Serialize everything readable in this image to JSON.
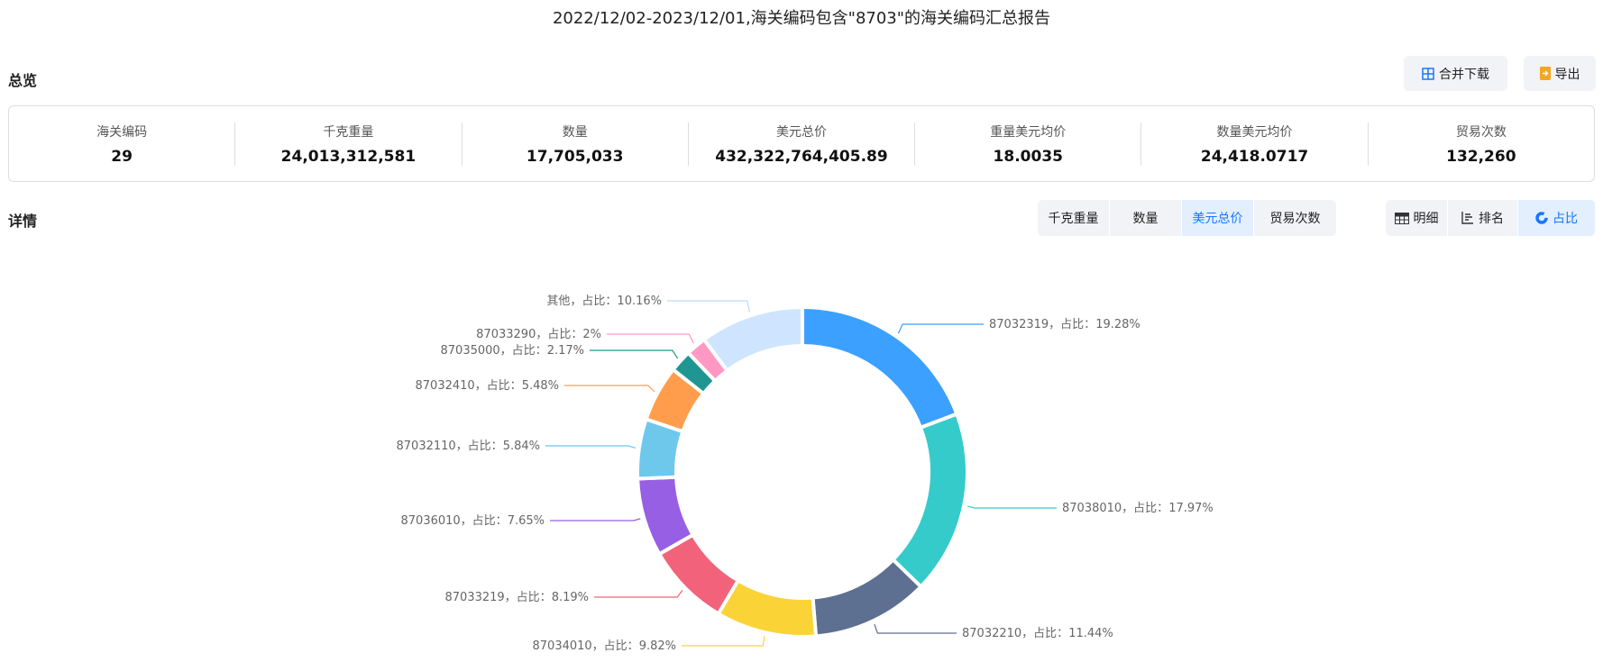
{
  "title": "2022/12/02-2023/12/01,海关编码包含\"8703\"的海关编码汇总报告",
  "overview": {
    "heading": "总览",
    "merge_download": "合并下载",
    "export": "导出",
    "stats": [
      {
        "label": "海关编码",
        "value": "29"
      },
      {
        "label": "千克重量",
        "value": "24,013,312,581"
      },
      {
        "label": "数量",
        "value": "17,705,033"
      },
      {
        "label": "美元总价",
        "value": "432,322,764,405.89"
      },
      {
        "label": "重量美元均价",
        "value": "18.0035"
      },
      {
        "label": "数量美元均价",
        "value": "24,418.0717"
      },
      {
        "label": "贸易次数",
        "value": "132,260"
      }
    ]
  },
  "details": {
    "heading": "详情",
    "metric_tabs": [
      {
        "label": "千克重量",
        "active": false
      },
      {
        "label": "数量",
        "active": false
      },
      {
        "label": "美元总价",
        "active": true
      },
      {
        "label": "贸易次数",
        "active": false
      }
    ],
    "view_tabs": [
      {
        "label": "明细",
        "icon": "table-icon",
        "active": false
      },
      {
        "label": "排名",
        "icon": "bar-ranking-icon",
        "active": false
      },
      {
        "label": "占比",
        "icon": "donut-icon",
        "active": true
      }
    ],
    "accent": "#1677ff"
  },
  "chart_data": {
    "type": "pie",
    "variant": "donut",
    "label_template": "{name}，占比：{value}%",
    "label_sep": "，占比：",
    "slices": [
      {
        "name": "87032319",
        "value": 19.28,
        "color": "#3ba0ff"
      },
      {
        "name": "87038010",
        "value": 17.97,
        "color": "#36cbcb"
      },
      {
        "name": "87032210",
        "value": 11.44,
        "color": "#5d7092"
      },
      {
        "name": "87034010",
        "value": 9.82,
        "color": "#fad337"
      },
      {
        "name": "87033219",
        "value": 8.19,
        "color": "#f2637b"
      },
      {
        "name": "87036010",
        "value": 7.65,
        "color": "#975fe4"
      },
      {
        "name": "87032110",
        "value": 5.84,
        "color": "#6dc8ec"
      },
      {
        "name": "87032410",
        "value": 5.48,
        "color": "#ff9d4d"
      },
      {
        "name": "87035000",
        "value": 2.17,
        "color": "#1f9692"
      },
      {
        "name": "87033290",
        "value": 2,
        "color": "#ff99c3"
      },
      {
        "name": "其他",
        "value": 10.16,
        "color": "#cfe5ff"
      }
    ]
  }
}
